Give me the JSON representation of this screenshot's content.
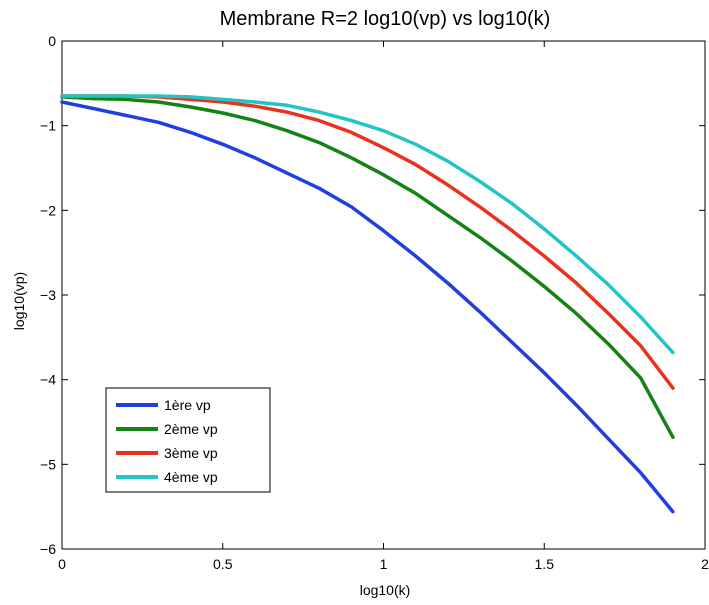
{
  "chart_data": {
    "type": "line",
    "title": "Membrane R=2 log10(vp) vs log10(k)",
    "xlabel": "log10(k)",
    "ylabel": "log10(vp)",
    "xlim": [
      0,
      2
    ],
    "ylim": [
      -6,
      0
    ],
    "xticks": [
      0,
      0.5,
      1,
      1.5,
      2
    ],
    "xtick_labels": [
      "0",
      "0.5",
      "1",
      "1.5",
      "2"
    ],
    "yticks": [
      0,
      -1,
      -2,
      -3,
      -4,
      -5,
      -6
    ],
    "ytick_labels": [
      "0",
      "−1",
      "−2",
      "−3",
      "−4",
      "−5",
      "−6"
    ],
    "grid": false,
    "legend_position": "bottom-left",
    "series": [
      {
        "name": "1ère vp",
        "color": "#1f3fe0",
        "x": [
          0,
          0.1,
          0.2,
          0.3,
          0.4,
          0.5,
          0.6,
          0.7,
          0.8,
          0.9,
          1.0,
          1.1,
          1.2,
          1.3,
          1.4,
          1.5,
          1.6,
          1.7,
          1.8,
          1.9
        ],
        "y": [
          -0.72,
          -0.8,
          -0.88,
          -0.96,
          -1.08,
          -1.22,
          -1.38,
          -1.56,
          -1.74,
          -1.96,
          -2.24,
          -2.54,
          -2.86,
          -3.2,
          -3.56,
          -3.92,
          -4.3,
          -4.7,
          -5.1,
          -5.56
        ]
      },
      {
        "name": "2ème vp",
        "color": "#148214",
        "x": [
          0,
          0.1,
          0.2,
          0.3,
          0.4,
          0.5,
          0.6,
          0.7,
          0.8,
          0.9,
          1.0,
          1.1,
          1.2,
          1.3,
          1.4,
          1.5,
          1.6,
          1.7,
          1.8,
          1.9
        ],
        "y": [
          -0.66,
          -0.68,
          -0.69,
          -0.72,
          -0.78,
          -0.85,
          -0.94,
          -1.06,
          -1.2,
          -1.38,
          -1.58,
          -1.8,
          -2.06,
          -2.32,
          -2.6,
          -2.9,
          -3.22,
          -3.58,
          -3.98,
          -4.68
        ]
      },
      {
        "name": "3ème vp",
        "color": "#e8321e",
        "x": [
          0,
          0.1,
          0.2,
          0.3,
          0.4,
          0.5,
          0.6,
          0.7,
          0.8,
          0.9,
          1.0,
          1.1,
          1.2,
          1.3,
          1.4,
          1.5,
          1.6,
          1.7,
          1.8,
          1.9
        ],
        "y": [
          -0.65,
          -0.65,
          -0.65,
          -0.66,
          -0.69,
          -0.72,
          -0.77,
          -0.84,
          -0.94,
          -1.08,
          -1.26,
          -1.46,
          -1.7,
          -1.96,
          -2.24,
          -2.54,
          -2.86,
          -3.22,
          -3.6,
          -4.1
        ]
      },
      {
        "name": "4ème vp",
        "color": "#23c4c4",
        "x": [
          0,
          0.1,
          0.2,
          0.3,
          0.4,
          0.5,
          0.6,
          0.7,
          0.8,
          0.9,
          1.0,
          1.1,
          1.2,
          1.3,
          1.4,
          1.5,
          1.6,
          1.7,
          1.8,
          1.9
        ],
        "y": [
          -0.65,
          -0.65,
          -0.65,
          -0.65,
          -0.66,
          -0.69,
          -0.72,
          -0.76,
          -0.84,
          -0.94,
          -1.06,
          -1.22,
          -1.42,
          -1.66,
          -1.92,
          -2.22,
          -2.54,
          -2.88,
          -3.26,
          -3.68
        ]
      }
    ]
  }
}
